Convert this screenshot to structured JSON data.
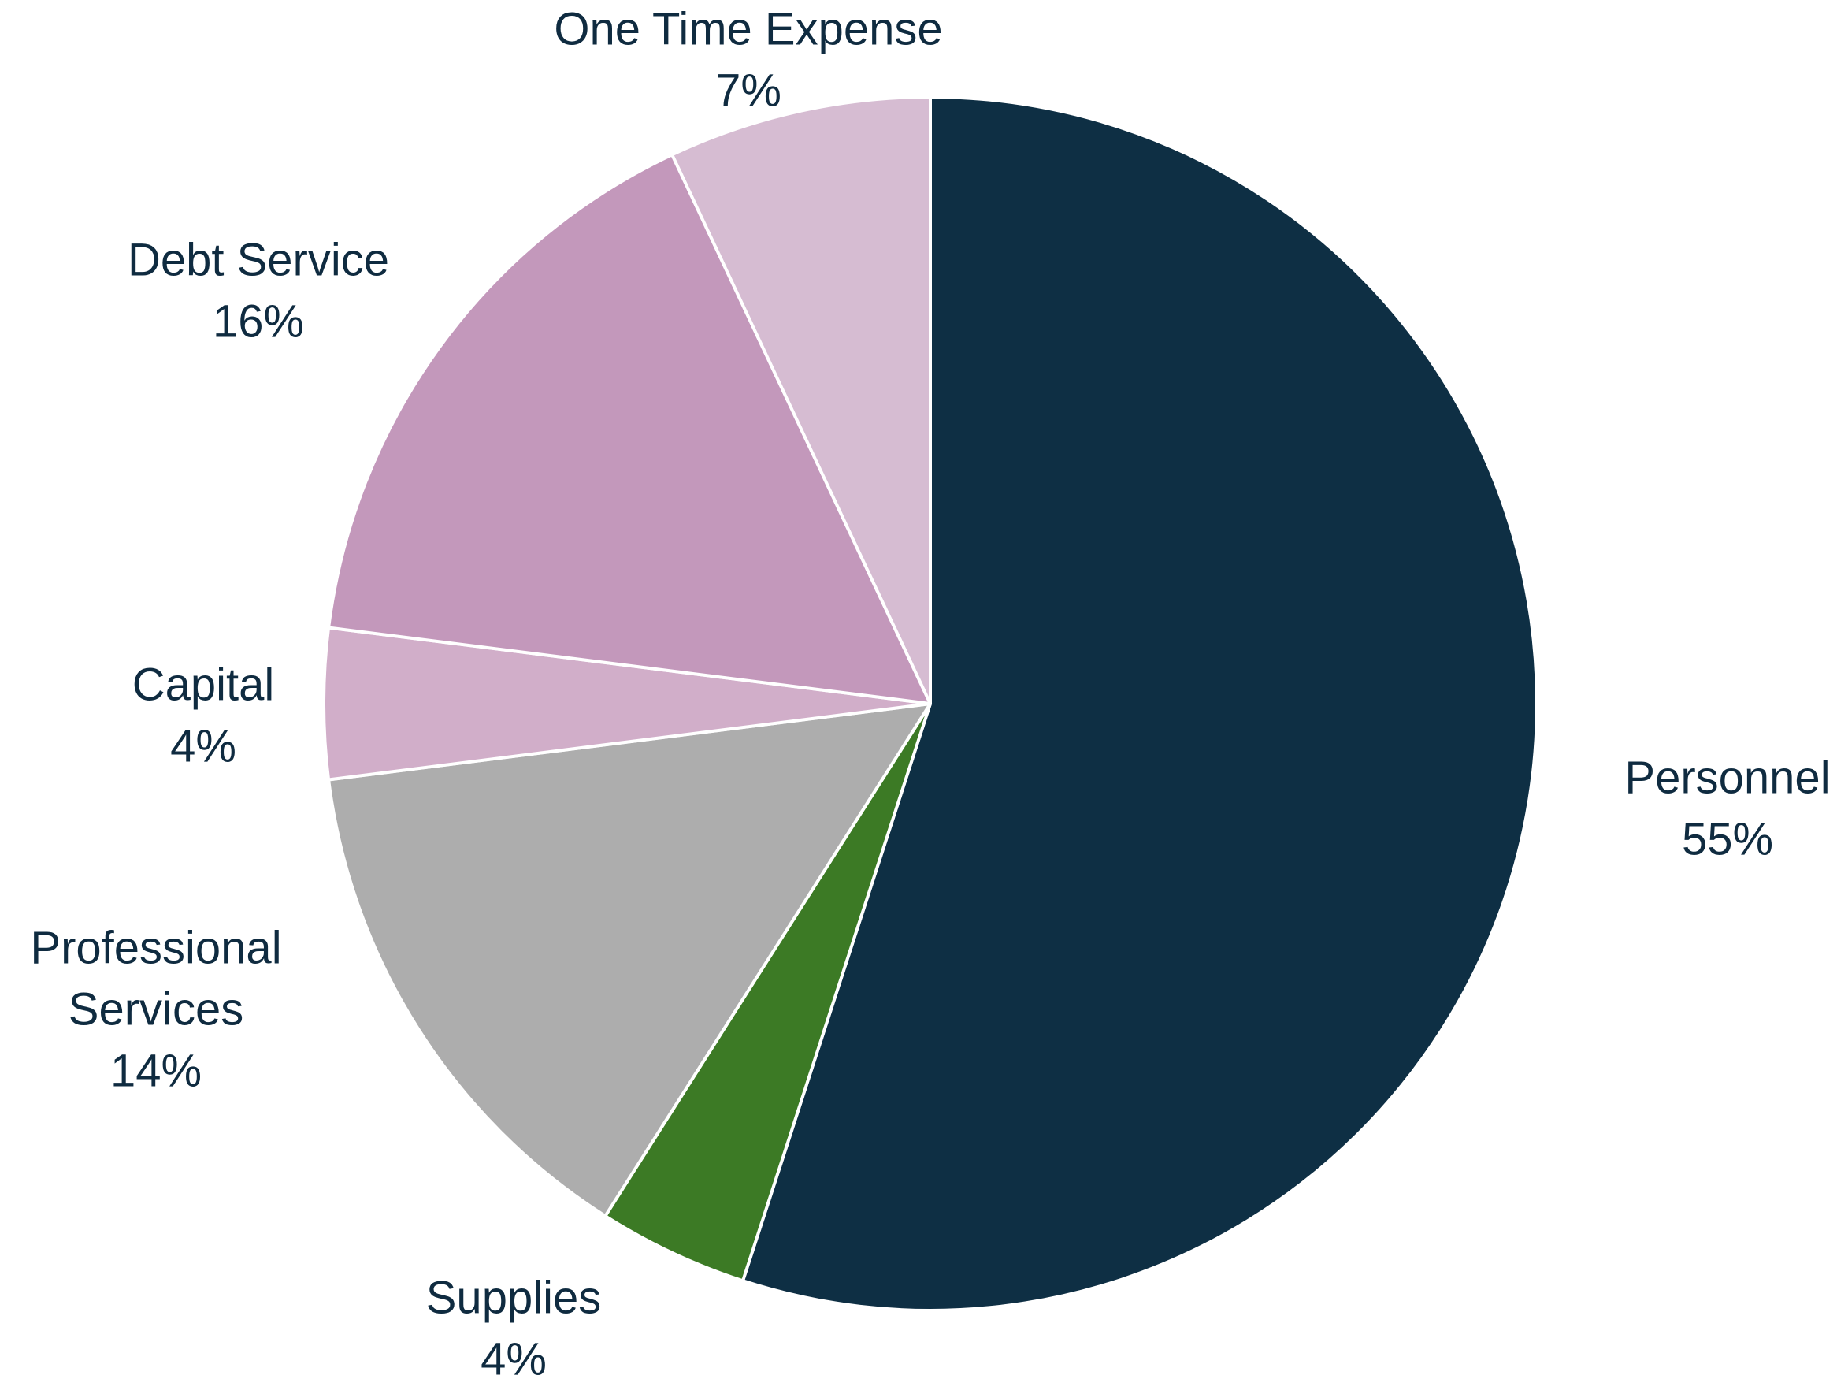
{
  "chart_data": {
    "type": "pie",
    "title": "",
    "slices": [
      {
        "name": "Personnel",
        "label_lines": [
          "Personnel"
        ],
        "percent_label": "55%",
        "value": 55,
        "color": "#0e2f44"
      },
      {
        "name": "Supplies",
        "label_lines": [
          "Supplies"
        ],
        "percent_label": "4%",
        "value": 4,
        "color": "#3c7a25"
      },
      {
        "name": "Professional Services",
        "label_lines": [
          "Professional",
          "Services"
        ],
        "percent_label": "14%",
        "value": 14,
        "color": "#adadad"
      },
      {
        "name": "Capital",
        "label_lines": [
          "Capital"
        ],
        "percent_label": "4%",
        "value": 4,
        "color": "#d1aec9"
      },
      {
        "name": "Debt Service",
        "label_lines": [
          "Debt Service"
        ],
        "percent_label": "16%",
        "value": 16,
        "color": "#c398bb"
      },
      {
        "name": "One Time Expense",
        "label_lines": [
          "One Time Expense"
        ],
        "percent_label": "7%",
        "value": 7,
        "color": "#d6bcd2"
      }
    ],
    "start_angle": "12 o'clock",
    "direction": "clockwise",
    "slice_border_color": "#ffffff",
    "label_color": "#0f2b40",
    "legend": "none"
  }
}
